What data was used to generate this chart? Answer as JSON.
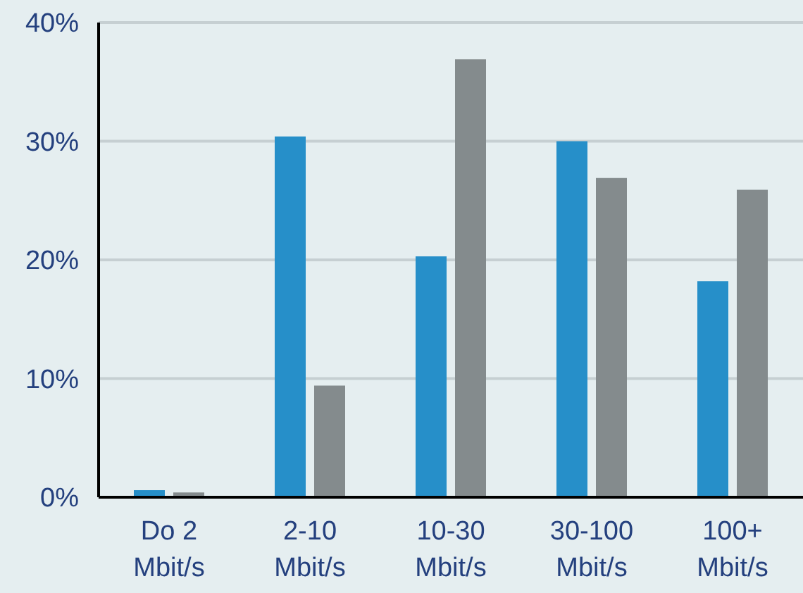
{
  "chart_data": {
    "type": "bar",
    "categories": [
      "Do 2\nMbit/s",
      "2-10\nMbit/s",
      "10-30\nMbit/s",
      "30-100\nMbit/s",
      "100+\nMbit/s"
    ],
    "series": [
      {
        "color": "#268fc9",
        "values": [
          0.6,
          30.4,
          20.3,
          30.0,
          18.2
        ]
      },
      {
        "color": "#848b8d",
        "values": [
          0.4,
          9.4,
          36.9,
          26.9,
          25.9
        ]
      }
    ],
    "ylim": [
      0,
      40
    ],
    "yticks": [
      {
        "value": 0,
        "label": "0%"
      },
      {
        "value": 10,
        "label": "10%"
      },
      {
        "value": 20,
        "label": "20%"
      },
      {
        "value": 30,
        "label": "30%"
      },
      {
        "value": 40,
        "label": "40%"
      }
    ],
    "grid": "y",
    "legend": false
  }
}
